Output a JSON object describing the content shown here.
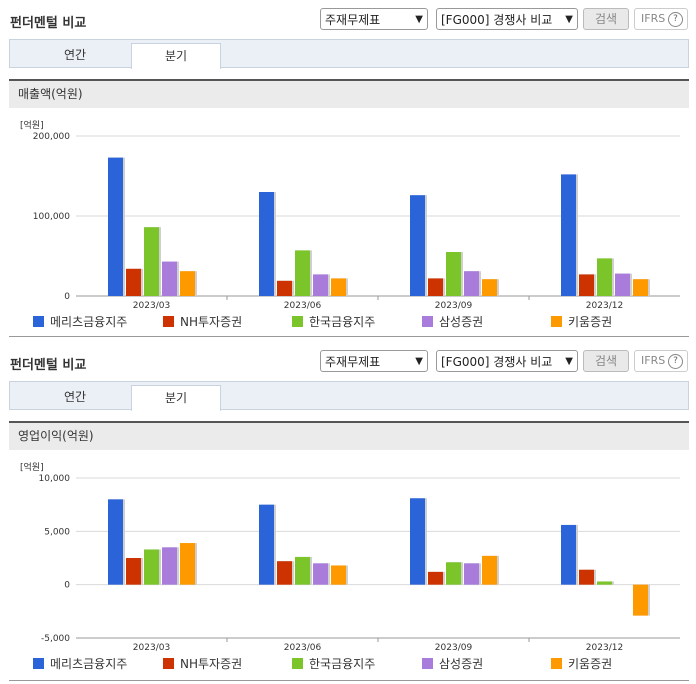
{
  "panels": [
    {
      "title": "펀더멘털 비교",
      "select1": "주재무제표",
      "select2": "[FG000] 경쟁사 비교",
      "search_label": "검색",
      "ifrs_label": "IFRS",
      "ifrs_help": "?",
      "tabs": [
        "연간",
        "분기"
      ],
      "active_tab": "분기",
      "section_title": "매출액(억원)",
      "unit_label": "[억원]"
    },
    {
      "title": "펀더멘털 비교",
      "select1": "주재무제표",
      "select2": "[FG000] 경쟁사 비교",
      "search_label": "검색",
      "ifrs_label": "IFRS",
      "ifrs_help": "?",
      "tabs": [
        "연간",
        "분기"
      ],
      "active_tab": "분기",
      "section_title": "영업이익(억원)",
      "unit_label": "[억원]"
    }
  ],
  "colors": {
    "series": [
      "#2a64d8",
      "#cc3300",
      "#7bc52a",
      "#a97bdb",
      "#ff9900"
    ],
    "grid": "#d9d9d9",
    "tab_bg": "#eaf0f6"
  },
  "chart_data": [
    {
      "type": "bar",
      "title": "매출액(억원)",
      "ylabel": "[억원]",
      "categories": [
        "2023/03",
        "2023/06",
        "2023/09",
        "2023/12"
      ],
      "ylim": [
        0,
        200000
      ],
      "yticks": [
        "0",
        "100,000",
        "200,000"
      ],
      "ytick_values": [
        0,
        100000,
        200000
      ],
      "legend_position": "bottom",
      "series": [
        {
          "name": "메리츠금융지주",
          "values": [
            173000,
            130000,
            126000,
            152000
          ]
        },
        {
          "name": "NH투자증권",
          "values": [
            34000,
            19000,
            22000,
            27000
          ]
        },
        {
          "name": "한국금융지주",
          "values": [
            86000,
            57000,
            55000,
            47000
          ]
        },
        {
          "name": "삼성증권",
          "values": [
            43000,
            27000,
            31000,
            28000
          ]
        },
        {
          "name": "키움증권",
          "values": [
            31000,
            22000,
            21000,
            21000
          ]
        }
      ]
    },
    {
      "type": "bar",
      "title": "영업이익(억원)",
      "ylabel": "[억원]",
      "categories": [
        "2023/03",
        "2023/06",
        "2023/09",
        "2023/12"
      ],
      "ylim": [
        -5000,
        10000
      ],
      "yticks": [
        "-5,000",
        "0",
        "5,000",
        "10,000"
      ],
      "ytick_values": [
        -5000,
        0,
        5000,
        10000
      ],
      "legend_position": "bottom",
      "series": [
        {
          "name": "메리츠금융지주",
          "values": [
            8000,
            7500,
            8100,
            5600
          ]
        },
        {
          "name": "NH투자증권",
          "values": [
            2500,
            2200,
            1200,
            1400
          ]
        },
        {
          "name": "한국금융지주",
          "values": [
            3300,
            2600,
            2100,
            300
          ]
        },
        {
          "name": "삼성증권",
          "values": [
            3500,
            2000,
            2000,
            0
          ]
        },
        {
          "name": "키움증권",
          "values": [
            3900,
            1800,
            2700,
            -2900
          ]
        }
      ]
    }
  ]
}
